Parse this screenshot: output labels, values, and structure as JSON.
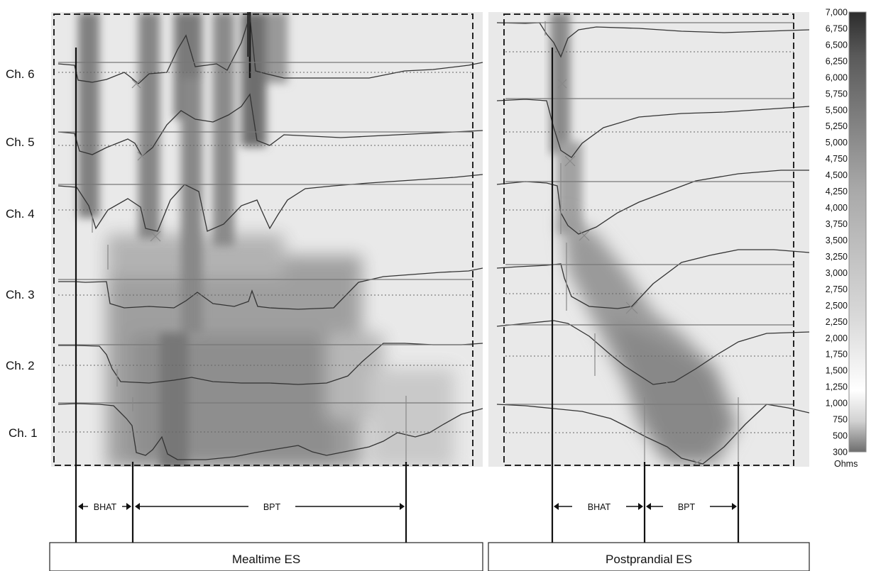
{
  "chart_data": {
    "type": "heatmap",
    "panels": [
      {
        "label": "Mealtime ES",
        "channels": [
          "Ch. 6",
          "Ch. 5",
          "Ch. 4",
          "Ch. 3",
          "Ch. 2",
          "Ch. 1"
        ],
        "intervals": [
          {
            "label": "BHAT"
          },
          {
            "label": "BPT"
          }
        ]
      },
      {
        "label": "Postprandial ES",
        "intervals": [
          {
            "label": "BHAT"
          },
          {
            "label": "BPT"
          }
        ]
      }
    ],
    "colorbar": {
      "unit": "Ohms",
      "range": [
        300,
        7000
      ],
      "tick_labels": [
        "7,000",
        "6,750",
        "6,500",
        "6,250",
        "6,000",
        "5,750",
        "5,500",
        "5,250",
        "5,000",
        "4,750",
        "4,500",
        "4,250",
        "4,000",
        "3,750",
        "3,500",
        "3,250",
        "3,000",
        "2,750",
        "2,500",
        "2,250",
        "2,000",
        "1,750",
        "1,500",
        "1,250",
        "1,000",
        "750",
        "500",
        "300"
      ],
      "colors": [
        "#2c2c2c",
        "#ffffff",
        "#f4f4f4",
        "#6e6e6e"
      ]
    }
  }
}
